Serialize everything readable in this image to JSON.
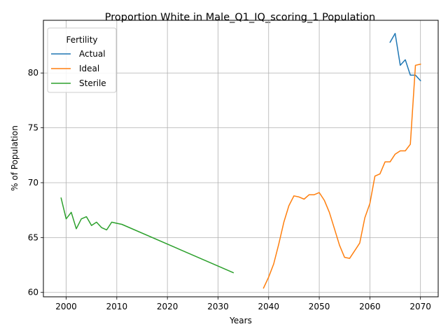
{
  "chart_data": {
    "type": "line",
    "title": "Proportion White in Male_Q1_IQ_scoring_1 Population",
    "xlabel": "Years",
    "ylabel": "% of Population",
    "xlim": [
      1995.5,
      2073.5
    ],
    "ylim": [
      59.6,
      84.8
    ],
    "xticks": [
      2000,
      2010,
      2020,
      2030,
      2040,
      2050,
      2060,
      2070
    ],
    "yticks": [
      60,
      65,
      70,
      75,
      80
    ],
    "grid": true,
    "legend": {
      "title": "Fertility",
      "placement": "top-left"
    },
    "series": [
      {
        "name": "Actual",
        "color": "#1f77b4",
        "x": [
          2064,
          2065,
          2066,
          2067,
          2068,
          2069,
          2070
        ],
        "y": [
          82.8,
          83.6,
          80.7,
          81.2,
          79.8,
          79.8,
          79.3
        ]
      },
      {
        "name": "Ideal",
        "color": "#ff7f0e",
        "x": [
          2039,
          2040,
          2041,
          2042,
          2043,
          2044,
          2045,
          2046,
          2047,
          2048,
          2049,
          2050,
          2051,
          2052,
          2053,
          2054,
          2055,
          2056,
          2057,
          2058,
          2059,
          2060,
          2061,
          2062,
          2063,
          2064,
          2065,
          2066,
          2067,
          2068,
          2069,
          2070
        ],
        "y": [
          60.4,
          61.4,
          62.6,
          64.4,
          66.4,
          67.9,
          68.8,
          68.7,
          68.5,
          68.9,
          68.9,
          69.1,
          68.4,
          67.3,
          65.8,
          64.3,
          63.2,
          63.1,
          63.8,
          64.5,
          66.8,
          68.1,
          70.6,
          70.8,
          71.9,
          71.9,
          72.6,
          72.9,
          72.9,
          73.5,
          80.7,
          80.8
        ]
      },
      {
        "name": "Sterile",
        "color": "#2ca02c",
        "x": [
          1999,
          2000,
          2001,
          2002,
          2003,
          2004,
          2005,
          2006,
          2007,
          2008,
          2009,
          2010,
          2011,
          2033
        ],
        "y": [
          68.6,
          66.7,
          67.3,
          65.8,
          66.7,
          66.9,
          66.1,
          66.4,
          65.9,
          65.7,
          66.4,
          66.3,
          66.2,
          61.8
        ]
      }
    ]
  }
}
